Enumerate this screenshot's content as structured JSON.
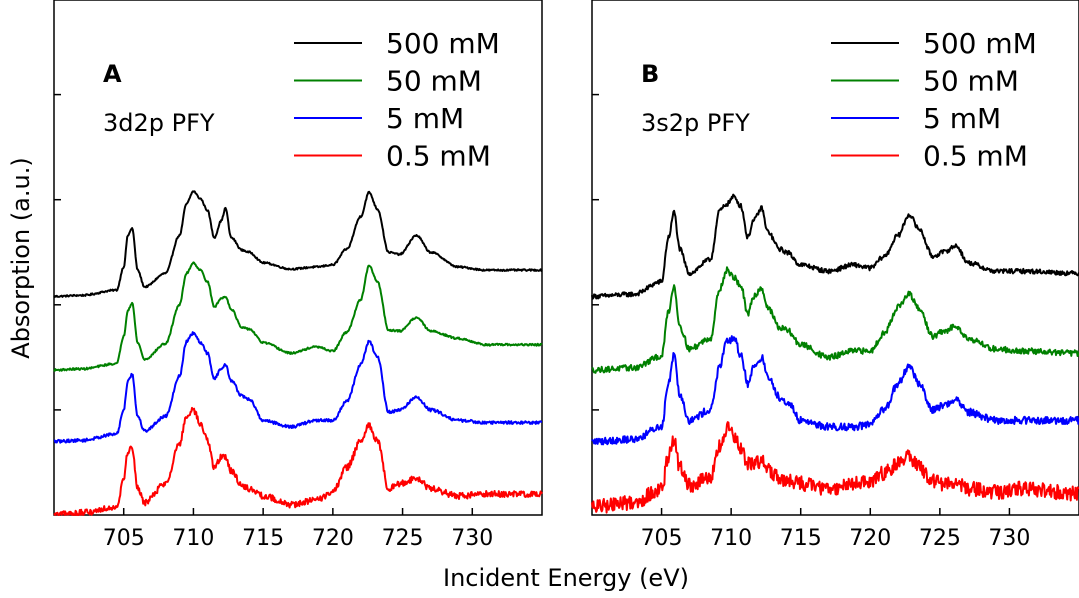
{
  "figure": {
    "xlabel": "Incident Energy (eV)",
    "ylabel": "Absorption (a.u.)"
  },
  "chart_data": [
    {
      "type": "line",
      "panel_label": "A",
      "annotation": "3d2p PFY",
      "xlabel": "Incident Energy (eV)",
      "ylabel": "Absorption (a.u.)",
      "xlim": [
        700,
        735
      ],
      "x_ticks": [
        705,
        710,
        715,
        720,
        725,
        730
      ],
      "ylim": [
        0,
        4.9
      ],
      "y_ticks": [
        1,
        2,
        3,
        4
      ],
      "y_tick_labels_shown": false,
      "grid": false,
      "legend": "top-right",
      "series": [
        {
          "name": "500 mM",
          "color": "#000000",
          "offset": 2.08,
          "noise": 0.008,
          "x": [
            700.0,
            702.0,
            704.5,
            705.0,
            705.3,
            705.6,
            706.0,
            706.5,
            708.0,
            709.0,
            709.5,
            710.0,
            710.5,
            711.0,
            711.5,
            712.0,
            712.3,
            712.7,
            713.5,
            714.0,
            715.0,
            717.0,
            718.8,
            720.0,
            721.0,
            722.0,
            722.6,
            723.2,
            724.0,
            724.8,
            726.0,
            727.0,
            729.0,
            731.0,
            735.0
          ],
          "y": [
            0.0,
            0.01,
            0.06,
            0.28,
            0.58,
            0.65,
            0.25,
            0.09,
            0.22,
            0.58,
            0.88,
            1.0,
            0.93,
            0.82,
            0.56,
            0.72,
            0.84,
            0.56,
            0.44,
            0.42,
            0.32,
            0.26,
            0.28,
            0.3,
            0.45,
            0.76,
            0.99,
            0.83,
            0.42,
            0.4,
            0.58,
            0.42,
            0.28,
            0.25,
            0.25
          ]
        },
        {
          "name": "50 mM",
          "color": "#008000",
          "offset": 1.38,
          "noise": 0.009,
          "x": [
            700.0,
            702.0,
            704.5,
            705.0,
            705.3,
            705.6,
            706.0,
            706.5,
            708.0,
            709.0,
            709.5,
            710.0,
            710.5,
            711.0,
            711.5,
            712.0,
            712.3,
            712.7,
            713.5,
            714.0,
            715.0,
            717.0,
            718.8,
            720.0,
            721.0,
            722.0,
            722.6,
            723.2,
            724.0,
            724.8,
            726.0,
            727.0,
            729.0,
            731.0,
            735.0
          ],
          "y": [
            0.0,
            0.01,
            0.06,
            0.32,
            0.57,
            0.64,
            0.26,
            0.1,
            0.25,
            0.62,
            0.92,
            1.02,
            0.95,
            0.84,
            0.6,
            0.68,
            0.7,
            0.58,
            0.4,
            0.39,
            0.26,
            0.16,
            0.22,
            0.18,
            0.36,
            0.67,
            0.99,
            0.84,
            0.38,
            0.37,
            0.5,
            0.37,
            0.3,
            0.24,
            0.24
          ]
        },
        {
          "name": "5 mM",
          "color": "#0000ff",
          "offset": 0.7,
          "noise": 0.014,
          "x": [
            700.0,
            702.0,
            704.5,
            705.0,
            705.3,
            705.6,
            706.0,
            706.5,
            708.0,
            709.0,
            709.5,
            710.0,
            710.5,
            711.0,
            711.5,
            712.0,
            712.3,
            712.7,
            713.5,
            714.0,
            715.0,
            717.0,
            718.8,
            720.0,
            721.0,
            722.0,
            722.6,
            723.2,
            724.0,
            724.8,
            726.0,
            727.0,
            729.0,
            731.0,
            735.0
          ],
          "y": [
            0.0,
            0.01,
            0.07,
            0.3,
            0.58,
            0.64,
            0.24,
            0.1,
            0.24,
            0.62,
            0.95,
            1.03,
            0.94,
            0.84,
            0.6,
            0.69,
            0.73,
            0.58,
            0.43,
            0.4,
            0.2,
            0.14,
            0.2,
            0.2,
            0.38,
            0.73,
            0.95,
            0.8,
            0.28,
            0.3,
            0.42,
            0.3,
            0.2,
            0.18,
            0.18
          ]
        },
        {
          "name": "0.5 mM",
          "color": "#ff0000",
          "offset": 0.0,
          "noise": 0.03,
          "x": [
            700.0,
            702.0,
            704.5,
            705.0,
            705.3,
            705.6,
            706.0,
            706.5,
            708.0,
            709.0,
            709.5,
            710.0,
            710.5,
            711.0,
            711.5,
            712.0,
            712.3,
            712.7,
            713.5,
            714.0,
            715.0,
            717.0,
            718.8,
            720.0,
            721.0,
            722.0,
            722.6,
            723.2,
            724.0,
            724.8,
            726.0,
            727.0,
            729.0,
            731.0,
            735.0
          ],
          "y": [
            0.0,
            0.02,
            0.08,
            0.35,
            0.6,
            0.65,
            0.25,
            0.12,
            0.3,
            0.68,
            0.92,
            1.0,
            0.86,
            0.72,
            0.45,
            0.55,
            0.55,
            0.42,
            0.28,
            0.25,
            0.18,
            0.1,
            0.14,
            0.22,
            0.45,
            0.7,
            0.85,
            0.7,
            0.25,
            0.3,
            0.35,
            0.25,
            0.18,
            0.2,
            0.2
          ]
        }
      ]
    },
    {
      "type": "line",
      "panel_label": "B",
      "annotation": "3s2p PFY",
      "xlabel": "Incident Energy (eV)",
      "ylabel": "",
      "xlim": [
        700,
        735
      ],
      "x_ticks": [
        705,
        710,
        715,
        720,
        725,
        730
      ],
      "ylim": [
        0,
        4.9
      ],
      "y_ticks": [
        1,
        2,
        3,
        4
      ],
      "y_tick_labels_shown": false,
      "grid": false,
      "legend": "top-right",
      "series": [
        {
          "name": "500 mM",
          "color": "#000000",
          "offset": 2.08,
          "noise": 0.022,
          "x": [
            700.0,
            703.0,
            705.0,
            705.5,
            705.9,
            706.3,
            707.0,
            708.5,
            709.2,
            709.7,
            710.2,
            710.7,
            711.2,
            711.6,
            712.2,
            712.6,
            713.5,
            714.0,
            715.0,
            717.0,
            718.8,
            720.0,
            721.0,
            722.0,
            722.8,
            723.5,
            724.5,
            725.2,
            726.2,
            727.0,
            729.0,
            731.0,
            735.0
          ],
          "y": [
            0.0,
            0.02,
            0.14,
            0.56,
            0.8,
            0.45,
            0.22,
            0.35,
            0.82,
            0.88,
            0.95,
            0.86,
            0.56,
            0.72,
            0.84,
            0.62,
            0.45,
            0.42,
            0.3,
            0.24,
            0.3,
            0.27,
            0.38,
            0.58,
            0.78,
            0.64,
            0.38,
            0.42,
            0.48,
            0.32,
            0.24,
            0.24,
            0.22
          ]
        },
        {
          "name": "50 mM",
          "color": "#008000",
          "offset": 1.38,
          "noise": 0.028,
          "x": [
            700.0,
            703.0,
            705.0,
            705.5,
            705.9,
            706.3,
            707.0,
            708.5,
            709.2,
            709.7,
            710.2,
            710.7,
            711.2,
            711.6,
            712.2,
            712.6,
            713.5,
            714.0,
            715.0,
            717.0,
            718.8,
            720.0,
            721.0,
            722.0,
            722.8,
            723.5,
            724.5,
            725.2,
            726.2,
            727.0,
            729.0,
            731.0,
            735.0
          ],
          "y": [
            0.0,
            0.02,
            0.13,
            0.56,
            0.8,
            0.42,
            0.2,
            0.3,
            0.78,
            0.95,
            0.88,
            0.8,
            0.52,
            0.7,
            0.78,
            0.6,
            0.4,
            0.38,
            0.24,
            0.12,
            0.18,
            0.18,
            0.35,
            0.6,
            0.72,
            0.58,
            0.32,
            0.36,
            0.42,
            0.3,
            0.2,
            0.18,
            0.16
          ]
        },
        {
          "name": "5 mM",
          "color": "#0000ff",
          "offset": 0.7,
          "noise": 0.035,
          "x": [
            700.0,
            703.0,
            705.0,
            705.5,
            705.9,
            706.3,
            707.0,
            708.5,
            709.2,
            709.7,
            710.2,
            710.7,
            711.2,
            711.6,
            712.2,
            712.6,
            713.5,
            714.0,
            715.0,
            717.0,
            718.8,
            720.0,
            721.0,
            722.0,
            722.8,
            723.5,
            724.5,
            725.2,
            726.2,
            727.0,
            729.0,
            731.0,
            735.0
          ],
          "y": [
            0.0,
            0.02,
            0.14,
            0.56,
            0.84,
            0.45,
            0.2,
            0.3,
            0.72,
            0.95,
            0.98,
            0.82,
            0.55,
            0.7,
            0.8,
            0.62,
            0.42,
            0.38,
            0.2,
            0.14,
            0.14,
            0.16,
            0.3,
            0.55,
            0.72,
            0.55,
            0.3,
            0.34,
            0.4,
            0.28,
            0.2,
            0.2,
            0.2
          ]
        },
        {
          "name": "0.5 mM",
          "color": "#ff0000",
          "offset": 0.0,
          "noise": 0.07,
          "x": [
            700.0,
            703.0,
            705.0,
            705.5,
            705.9,
            706.3,
            707.0,
            708.5,
            709.2,
            709.7,
            710.2,
            710.7,
            711.2,
            711.6,
            712.2,
            712.6,
            713.5,
            714.0,
            715.0,
            717.0,
            718.8,
            720.0,
            721.0,
            722.0,
            722.8,
            723.5,
            724.5,
            725.2,
            726.2,
            727.0,
            729.0,
            731.0,
            735.0
          ],
          "y": [
            0.08,
            0.12,
            0.25,
            0.55,
            0.72,
            0.45,
            0.28,
            0.35,
            0.65,
            0.82,
            0.75,
            0.62,
            0.48,
            0.5,
            0.52,
            0.42,
            0.35,
            0.32,
            0.3,
            0.25,
            0.3,
            0.32,
            0.4,
            0.5,
            0.55,
            0.45,
            0.32,
            0.3,
            0.3,
            0.25,
            0.22,
            0.25,
            0.2
          ]
        }
      ]
    }
  ]
}
